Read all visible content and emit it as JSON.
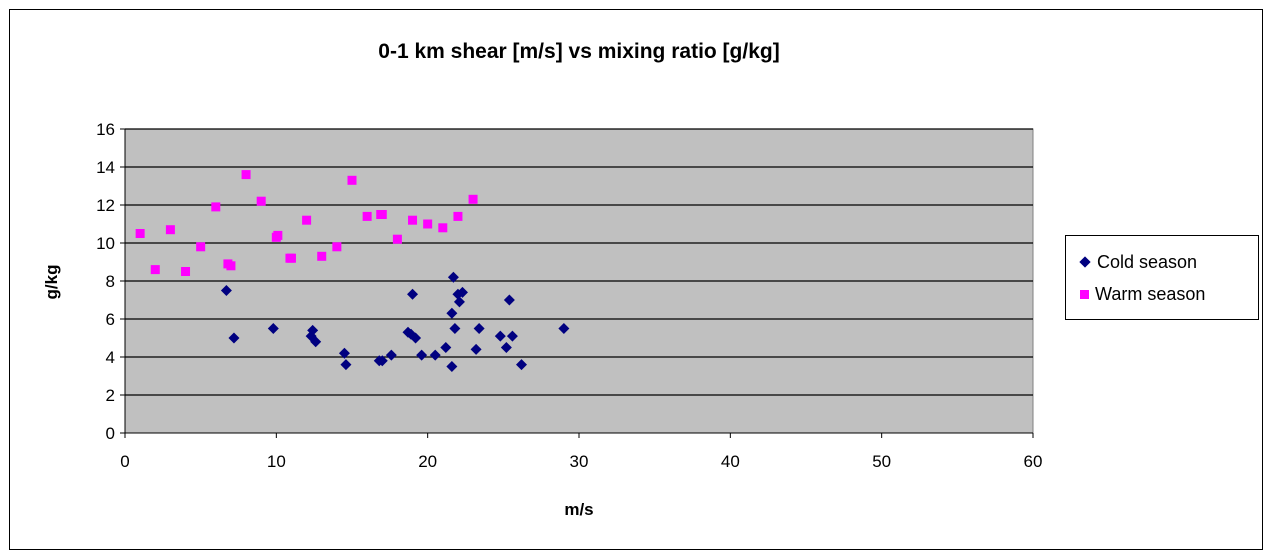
{
  "chart_data": {
    "type": "scatter",
    "title": "0-1 km shear [m/s] vs mixing ratio [g/kg]",
    "xlabel": "m/s",
    "ylabel": "g/kg",
    "xlim": [
      0,
      60
    ],
    "ylim": [
      0,
      16
    ],
    "xticks": [
      0,
      10,
      20,
      30,
      40,
      50,
      60
    ],
    "yticks": [
      0,
      2,
      4,
      6,
      8,
      10,
      12,
      14,
      16
    ],
    "plot_background": "#C0C0C0",
    "grid": "horizontal",
    "legend_position": "right",
    "series": [
      {
        "name": "Cold season",
        "marker": "diamond",
        "color": "#000080",
        "points": [
          [
            6.7,
            7.5
          ],
          [
            7.2,
            5.0
          ],
          [
            9.8,
            5.5
          ],
          [
            12.3,
            5.1
          ],
          [
            12.4,
            5.4
          ],
          [
            12.6,
            4.8
          ],
          [
            14.5,
            4.2
          ],
          [
            14.6,
            3.6
          ],
          [
            16.8,
            3.8
          ],
          [
            17.0,
            3.8
          ],
          [
            17.6,
            4.1
          ],
          [
            18.7,
            5.3
          ],
          [
            18.9,
            5.2
          ],
          [
            19.0,
            7.3
          ],
          [
            19.2,
            5.0
          ],
          [
            19.6,
            4.1
          ],
          [
            20.5,
            4.1
          ],
          [
            21.2,
            4.5
          ],
          [
            21.6,
            3.5
          ],
          [
            21.6,
            6.3
          ],
          [
            21.7,
            8.2
          ],
          [
            21.8,
            5.5
          ],
          [
            22.0,
            7.3
          ],
          [
            22.1,
            6.9
          ],
          [
            22.3,
            7.4
          ],
          [
            23.2,
            4.4
          ],
          [
            23.4,
            5.5
          ],
          [
            24.8,
            5.1
          ],
          [
            25.2,
            4.5
          ],
          [
            25.4,
            7.0
          ],
          [
            25.6,
            5.1
          ],
          [
            26.2,
            3.6
          ],
          [
            29.0,
            5.5
          ]
        ]
      },
      {
        "name": "Warm season",
        "marker": "square",
        "color": "#FF00FF",
        "points": [
          [
            1.0,
            10.5
          ],
          [
            2.0,
            8.6
          ],
          [
            3.0,
            10.7
          ],
          [
            4.0,
            8.5
          ],
          [
            5.0,
            9.8
          ],
          [
            6.0,
            11.9
          ],
          [
            6.8,
            8.9
          ],
          [
            7.0,
            8.8
          ],
          [
            8.0,
            13.6
          ],
          [
            9.0,
            12.2
          ],
          [
            10.0,
            10.3
          ],
          [
            10.1,
            10.4
          ],
          [
            10.9,
            9.2
          ],
          [
            11.0,
            9.2
          ],
          [
            12.0,
            11.2
          ],
          [
            13.0,
            9.3
          ],
          [
            14.0,
            9.8
          ],
          [
            15.0,
            13.3
          ],
          [
            16.0,
            11.4
          ],
          [
            16.9,
            11.5
          ],
          [
            17.0,
            11.5
          ],
          [
            18.0,
            10.2
          ],
          [
            19.0,
            11.2
          ],
          [
            20.0,
            11.0
          ],
          [
            21.0,
            10.8
          ],
          [
            22.0,
            11.4
          ],
          [
            23.0,
            12.3
          ]
        ]
      }
    ]
  }
}
